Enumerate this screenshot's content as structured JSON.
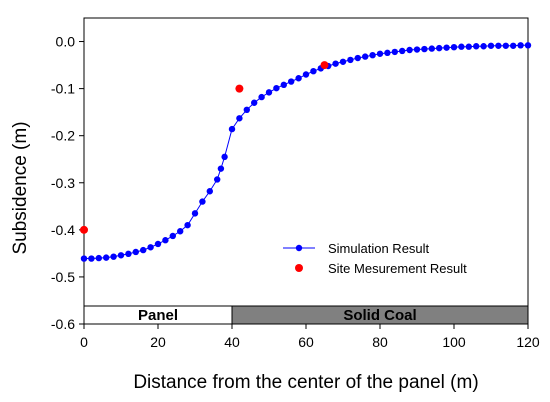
{
  "chart_data": {
    "type": "scatter",
    "xlabel": "Distance from the center of the panel (m)",
    "ylabel": "Subsidence (m)",
    "xlim": [
      0,
      120
    ],
    "ylim": [
      -0.6,
      0.05
    ],
    "x_ticks": [
      0,
      20,
      40,
      60,
      80,
      100,
      120
    ],
    "x_tick_labels": [
      "0",
      "20",
      "40",
      "60",
      "80",
      "100",
      "120"
    ],
    "y_ticks": [
      0.0,
      -0.1,
      -0.2,
      -0.3,
      -0.4,
      -0.5,
      -0.6
    ],
    "y_tick_labels": [
      "0.0",
      "-0.1",
      "-0.2",
      "-0.3",
      "-0.4",
      "-0.5",
      "-0.6"
    ],
    "grid": false,
    "legend_position": "center-right",
    "series": [
      {
        "name": "Simulation Result",
        "style": "line-with-markers",
        "color": "#0000ff",
        "x": [
          0,
          2,
          4,
          6,
          8,
          10,
          12,
          14,
          16,
          18,
          20,
          22,
          24,
          26,
          28,
          30,
          32,
          34,
          36,
          37,
          38,
          40,
          42,
          44,
          46,
          48,
          50,
          52,
          54,
          56,
          58,
          60,
          62,
          64,
          66,
          68,
          70,
          72,
          74,
          76,
          78,
          80,
          82,
          84,
          86,
          88,
          90,
          92,
          94,
          96,
          98,
          100,
          102,
          104,
          106,
          108,
          110,
          112,
          114,
          116,
          118,
          120
        ],
        "y": [
          -0.461,
          -0.461,
          -0.46,
          -0.459,
          -0.457,
          -0.454,
          -0.451,
          -0.447,
          -0.443,
          -0.437,
          -0.43,
          -0.422,
          -0.413,
          -0.403,
          -0.39,
          -0.365,
          -0.34,
          -0.318,
          -0.293,
          -0.27,
          -0.245,
          -0.186,
          -0.163,
          -0.145,
          -0.13,
          -0.118,
          -0.108,
          -0.099,
          -0.092,
          -0.085,
          -0.078,
          -0.07,
          -0.063,
          -0.057,
          -0.052,
          -0.047,
          -0.043,
          -0.039,
          -0.035,
          -0.032,
          -0.029,
          -0.026,
          -0.024,
          -0.022,
          -0.02,
          -0.018,
          -0.017,
          -0.016,
          -0.015,
          -0.014,
          -0.013,
          -0.012,
          -0.011,
          -0.011,
          -0.01,
          -0.01,
          -0.009,
          -0.009,
          -0.009,
          -0.009,
          -0.008,
          -0.008
        ]
      },
      {
        "name": "Site Mesurement Result",
        "style": "markers",
        "color": "#ff0000",
        "x": [
          0,
          42,
          65
        ],
        "y": [
          -0.4,
          -0.1,
          -0.05
        ]
      }
    ],
    "regions": [
      {
        "label": "Panel",
        "x_start": 0,
        "x_end": 40,
        "fill": "#ffffff"
      },
      {
        "label": "Solid Coal",
        "x_start": 40,
        "x_end": 120,
        "fill": "#808080"
      }
    ]
  }
}
